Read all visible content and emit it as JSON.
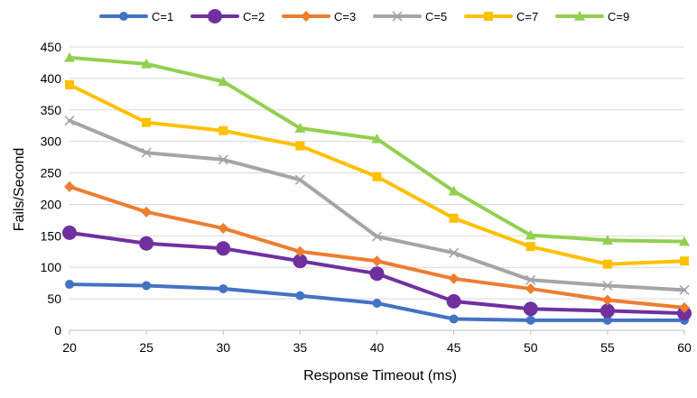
{
  "chart_data": {
    "type": "line",
    "title": "",
    "xlabel": "Response Timeout (ms)",
    "ylabel": "Fails/Second",
    "x": [
      20,
      25,
      30,
      35,
      40,
      45,
      50,
      55,
      60
    ],
    "xlim": [
      20,
      60
    ],
    "ylim": [
      0,
      450
    ],
    "yticks": [
      0,
      50,
      100,
      150,
      200,
      250,
      300,
      350,
      400,
      450
    ],
    "grid": "horizontal",
    "legend": "top",
    "series": [
      {
        "name": "C=1",
        "color": "#4472C4",
        "marker": "circle-small",
        "values": [
          73,
          71,
          66,
          55,
          43,
          18,
          16,
          16,
          16
        ]
      },
      {
        "name": "C=2",
        "color": "#7030A0",
        "marker": "circle-large",
        "values": [
          155,
          138,
          130,
          110,
          90,
          46,
          34,
          31,
          27
        ]
      },
      {
        "name": "C=3",
        "color": "#ED7D31",
        "marker": "diamond",
        "values": [
          228,
          188,
          162,
          125,
          110,
          82,
          66,
          48,
          36
        ]
      },
      {
        "name": "C=5",
        "color": "#A5A5A5",
        "marker": "x",
        "values": [
          333,
          282,
          271,
          239,
          149,
          123,
          80,
          71,
          64
        ]
      },
      {
        "name": "C=7",
        "color": "#FFC000",
        "marker": "square",
        "values": [
          390,
          330,
          317,
          293,
          244,
          178,
          133,
          105,
          110
        ]
      },
      {
        "name": "C=9",
        "color": "#92D050",
        "marker": "triangle",
        "values": [
          433,
          423,
          395,
          321,
          304,
          221,
          151,
          143,
          141
        ]
      }
    ]
  }
}
